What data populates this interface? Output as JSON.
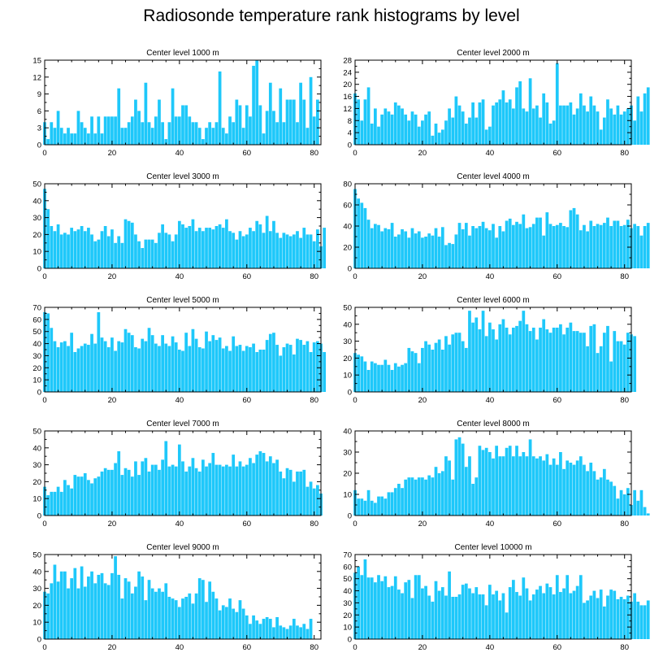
{
  "title": "Radiosonde temperature rank histograms by level",
  "bar_color": "#1ec8fa",
  "chart_data": [
    {
      "type": "bar",
      "title": "Center level 1000 m",
      "xlim": [
        0,
        82
      ],
      "ylim": [
        0,
        15
      ],
      "xticks": [
        0,
        20,
        40,
        60,
        80
      ],
      "yticks": [
        0,
        3,
        6,
        9,
        12,
        15
      ],
      "values": [
        4,
        1,
        4,
        3,
        6,
        3,
        2,
        3,
        2,
        2,
        6,
        4,
        3,
        2,
        5,
        2,
        5,
        2,
        5,
        5,
        5,
        5,
        10,
        3,
        3,
        4,
        5,
        8,
        6,
        4,
        11,
        4,
        3,
        5,
        8,
        4,
        1,
        4,
        10,
        5,
        5,
        7,
        7,
        5,
        4,
        4,
        3,
        1,
        3,
        4,
        3,
        4,
        13,
        3,
        2,
        5,
        4,
        8,
        7,
        3,
        7,
        5,
        14,
        15,
        7,
        2,
        6,
        11,
        6,
        4,
        10,
        4,
        8,
        8,
        8,
        4,
        11,
        8,
        3,
        12,
        5,
        8
      ]
    },
    {
      "type": "bar",
      "title": "Center level 2000 m",
      "xlim": [
        0,
        82
      ],
      "ylim": [
        0,
        28
      ],
      "xticks": [
        0,
        20,
        40,
        60,
        80
      ],
      "yticks": [
        0,
        4,
        8,
        12,
        16,
        20,
        24,
        28
      ],
      "values": [
        17,
        15,
        8,
        15,
        19,
        7,
        12,
        6,
        10,
        12,
        11,
        10,
        14,
        13,
        12,
        10,
        8,
        11,
        10,
        6,
        8,
        10,
        11,
        3,
        7,
        4,
        5,
        8,
        12,
        9,
        16,
        13,
        11,
        7,
        9,
        14,
        9,
        14,
        15,
        5,
        6,
        13,
        14,
        15,
        18,
        14,
        15,
        12,
        19,
        21,
        12,
        11,
        22,
        12,
        13,
        9,
        17,
        14,
        7,
        8,
        27,
        13,
        13,
        13,
        14,
        10,
        12,
        17,
        13,
        11,
        16,
        13,
        11,
        5,
        9,
        15,
        12,
        10,
        13,
        10,
        11,
        12,
        13,
        8,
        16,
        11,
        17,
        19
      ]
    },
    {
      "type": "bar",
      "title": "Center level 3000 m",
      "xlim": [
        0,
        82
      ],
      "ylim": [
        0,
        50
      ],
      "xticks": [
        0,
        20,
        40,
        60,
        80
      ],
      "yticks": [
        0,
        10,
        20,
        30,
        40,
        50
      ],
      "values": [
        47,
        35,
        25,
        22,
        26,
        20,
        21,
        20,
        24,
        22,
        23,
        25,
        22,
        24,
        20,
        16,
        17,
        22,
        25,
        19,
        23,
        15,
        19,
        15,
        29,
        28,
        27,
        20,
        16,
        12,
        17,
        17,
        17,
        15,
        21,
        26,
        21,
        20,
        16,
        20,
        28,
        26,
        24,
        25,
        29,
        22,
        24,
        22,
        24,
        24,
        23,
        25,
        26,
        24,
        29,
        22,
        21,
        17,
        22,
        19,
        20,
        24,
        22,
        28,
        26,
        21,
        31,
        22,
        28,
        21,
        18,
        21,
        20,
        19,
        20,
        22,
        18,
        24,
        20,
        20,
        16,
        23,
        13,
        24
      ]
    },
    {
      "type": "bar",
      "title": "Center level 4000 m",
      "xlim": [
        0,
        82
      ],
      "ylim": [
        0,
        80
      ],
      "xticks": [
        0,
        20,
        40,
        60,
        80
      ],
      "yticks": [
        0,
        20,
        40,
        60,
        80
      ],
      "values": [
        75,
        66,
        62,
        57,
        46,
        38,
        42,
        41,
        35,
        38,
        37,
        43,
        30,
        32,
        37,
        35,
        29,
        38,
        33,
        35,
        29,
        30,
        33,
        31,
        38,
        30,
        39,
        22,
        24,
        23,
        32,
        43,
        37,
        43,
        31,
        40,
        38,
        40,
        44,
        38,
        36,
        42,
        29,
        40,
        35,
        45,
        47,
        41,
        44,
        42,
        51,
        38,
        39,
        42,
        48,
        48,
        31,
        53,
        42,
        40,
        41,
        43,
        40,
        39,
        55,
        57,
        51,
        36,
        41,
        35,
        45,
        40,
        42,
        41,
        43,
        48,
        40,
        45,
        45,
        40,
        41,
        46,
        38,
        42,
        40,
        31,
        40,
        43
      ]
    },
    {
      "type": "bar",
      "title": "Center level 5000 m",
      "xlim": [
        0,
        82
      ],
      "ylim": [
        0,
        70
      ],
      "xticks": [
        0,
        20,
        40,
        60,
        80
      ],
      "yticks": [
        0,
        10,
        20,
        30,
        40,
        50,
        60,
        70
      ],
      "values": [
        66,
        65,
        53,
        42,
        37,
        41,
        42,
        38,
        49,
        33,
        36,
        38,
        40,
        39,
        48,
        40,
        66,
        45,
        42,
        37,
        45,
        34,
        42,
        41,
        52,
        49,
        47,
        37,
        36,
        44,
        42,
        53,
        47,
        40,
        38,
        47,
        40,
        38,
        46,
        41,
        35,
        34,
        49,
        38,
        52,
        44,
        37,
        36,
        50,
        42,
        47,
        43,
        45,
        36,
        38,
        34,
        46,
        38,
        39,
        34,
        38,
        37,
        40,
        33,
        35,
        35,
        43,
        48,
        49,
        39,
        30,
        37,
        40,
        39,
        31,
        44,
        43,
        39,
        42,
        33,
        41,
        42,
        40,
        33
      ]
    },
    {
      "type": "bar",
      "title": "Center level 6000 m",
      "xlim": [
        0,
        82
      ],
      "ylim": [
        0,
        50
      ],
      "xticks": [
        0,
        20,
        40,
        60,
        80
      ],
      "yticks": [
        0,
        10,
        20,
        30,
        40,
        50
      ],
      "values": [
        23,
        22,
        21,
        18,
        13,
        18,
        17,
        16,
        16,
        19,
        16,
        13,
        17,
        15,
        16,
        17,
        26,
        24,
        23,
        17,
        26,
        30,
        28,
        25,
        29,
        31,
        25,
        33,
        28,
        34,
        35,
        35,
        30,
        26,
        48,
        41,
        44,
        37,
        48,
        33,
        41,
        37,
        31,
        40,
        43,
        38,
        34,
        38,
        39,
        42,
        48,
        40,
        36,
        38,
        31,
        38,
        43,
        37,
        35,
        38,
        38,
        40,
        34,
        38,
        41,
        36,
        36,
        35,
        35,
        27,
        39,
        40,
        23,
        27,
        35,
        39,
        18,
        36,
        30,
        30,
        28,
        35,
        34,
        33
      ]
    },
    {
      "type": "bar",
      "title": "Center level 7000 m",
      "xlim": [
        0,
        82
      ],
      "ylim": [
        0,
        50
      ],
      "xticks": [
        0,
        20,
        40,
        60,
        80
      ],
      "yticks": [
        0,
        10,
        20,
        30,
        40,
        50
      ],
      "values": [
        17,
        12,
        14,
        14,
        17,
        14,
        21,
        18,
        16,
        24,
        23,
        23,
        25,
        21,
        19,
        22,
        23,
        26,
        28,
        27,
        27,
        31,
        38,
        24,
        28,
        27,
        23,
        32,
        24,
        32,
        34,
        26,
        30,
        30,
        27,
        33,
        44,
        29,
        30,
        29,
        42,
        32,
        26,
        29,
        34,
        28,
        26,
        33,
        29,
        31,
        37,
        30,
        30,
        29,
        30,
        29,
        36,
        29,
        32,
        29,
        30,
        34,
        31,
        36,
        38,
        37,
        32,
        35,
        31,
        33,
        26,
        22,
        28,
        27,
        20,
        26,
        26,
        27,
        17,
        20,
        16,
        18,
        13
      ]
    },
    {
      "type": "bar",
      "title": "Center level 8000 m",
      "xlim": [
        0,
        82
      ],
      "ylim": [
        0,
        40
      ],
      "xticks": [
        0,
        20,
        40,
        60,
        80
      ],
      "yticks": [
        0,
        10,
        20,
        30,
        40
      ],
      "values": [
        12,
        8,
        8,
        7,
        12,
        7,
        6,
        9,
        9,
        8,
        11,
        11,
        13,
        15,
        13,
        17,
        18,
        18,
        17,
        18,
        18,
        17,
        19,
        18,
        23,
        20,
        21,
        28,
        26,
        17,
        36,
        37,
        34,
        23,
        28,
        15,
        18,
        33,
        31,
        32,
        30,
        27,
        33,
        28,
        28,
        32,
        33,
        28,
        33,
        28,
        30,
        28,
        36,
        28,
        27,
        28,
        26,
        29,
        24,
        27,
        24,
        30,
        22,
        26,
        25,
        24,
        26,
        28,
        24,
        21,
        25,
        21,
        17,
        18,
        22,
        17,
        16,
        14,
        8,
        12,
        10,
        13,
        5,
        12,
        7,
        12,
        4,
        1
      ]
    },
    {
      "type": "bar",
      "title": "Center level 9000 m",
      "xlim": [
        0,
        82
      ],
      "ylim": [
        0,
        50
      ],
      "xticks": [
        0,
        20,
        40,
        60,
        80
      ],
      "yticks": [
        0,
        10,
        20,
        30,
        40,
        50
      ],
      "values": [
        28,
        27,
        33,
        44,
        34,
        40,
        40,
        30,
        36,
        42,
        30,
        43,
        31,
        37,
        40,
        33,
        38,
        39,
        33,
        32,
        39,
        49,
        38,
        24,
        36,
        34,
        27,
        31,
        40,
        37,
        23,
        35,
        30,
        28,
        30,
        28,
        33,
        25,
        24,
        23,
        19,
        24,
        25,
        27,
        21,
        27,
        36,
        35,
        22,
        34,
        28,
        24,
        17,
        20,
        19,
        24,
        18,
        16,
        23,
        18,
        14,
        9,
        14,
        11,
        9,
        12,
        13,
        12,
        7,
        13,
        8,
        7,
        6,
        8,
        12,
        8,
        7,
        9,
        6,
        12
      ]
    },
    {
      "type": "bar",
      "title": "Center level 10000 m",
      "xlim": [
        0,
        82
      ],
      "ylim": [
        0,
        70
      ],
      "xticks": [
        0,
        20,
        40,
        60,
        80
      ],
      "yticks": [
        0,
        10,
        20,
        30,
        40,
        50,
        60,
        70
      ],
      "values": [
        55,
        60,
        53,
        66,
        51,
        51,
        47,
        53,
        48,
        52,
        43,
        44,
        52,
        41,
        38,
        47,
        49,
        34,
        53,
        53,
        42,
        44,
        36,
        31,
        48,
        40,
        43,
        36,
        56,
        35,
        35,
        37,
        45,
        46,
        42,
        38,
        43,
        37,
        37,
        28,
        45,
        37,
        40,
        32,
        38,
        22,
        43,
        49,
        39,
        36,
        51,
        42,
        32,
        37,
        41,
        44,
        38,
        46,
        43,
        37,
        53,
        39,
        42,
        53,
        38,
        40,
        44,
        53,
        30,
        32,
        36,
        40,
        34,
        41,
        27,
        36,
        41,
        40,
        33,
        35,
        33,
        36,
        31,
        38,
        31,
        28,
        28,
        32
      ]
    }
  ]
}
